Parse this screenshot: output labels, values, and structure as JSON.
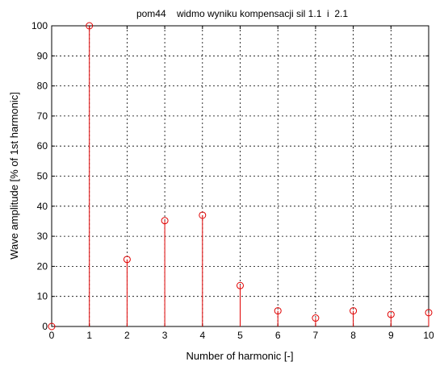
{
  "chart_data": {
    "type": "stem",
    "title": "pom44    widmo wyniku kompensacji sil 1.1  i  2.1",
    "xlabel": "Number of harmonic [-]",
    "ylabel": "Wave amplitude [% of 1st harmonic]",
    "x": [
      0,
      1,
      2,
      3,
      4,
      5,
      6,
      7,
      8,
      9,
      10
    ],
    "y": [
      0,
      100,
      22.3,
      35.2,
      37,
      13.6,
      5.2,
      2.8,
      5.2,
      4,
      4.6
    ],
    "xlim": [
      0,
      10
    ],
    "ylim": [
      0,
      100
    ],
    "xticks": [
      "0",
      "1",
      "2",
      "3",
      "4",
      "5",
      "6",
      "7",
      "8",
      "9",
      "10"
    ],
    "yticks": [
      "0",
      "10",
      "20",
      "30",
      "40",
      "50",
      "60",
      "70",
      "80",
      "90",
      "100"
    ],
    "grid": true,
    "marker": "circle",
    "color": "#e00000"
  }
}
